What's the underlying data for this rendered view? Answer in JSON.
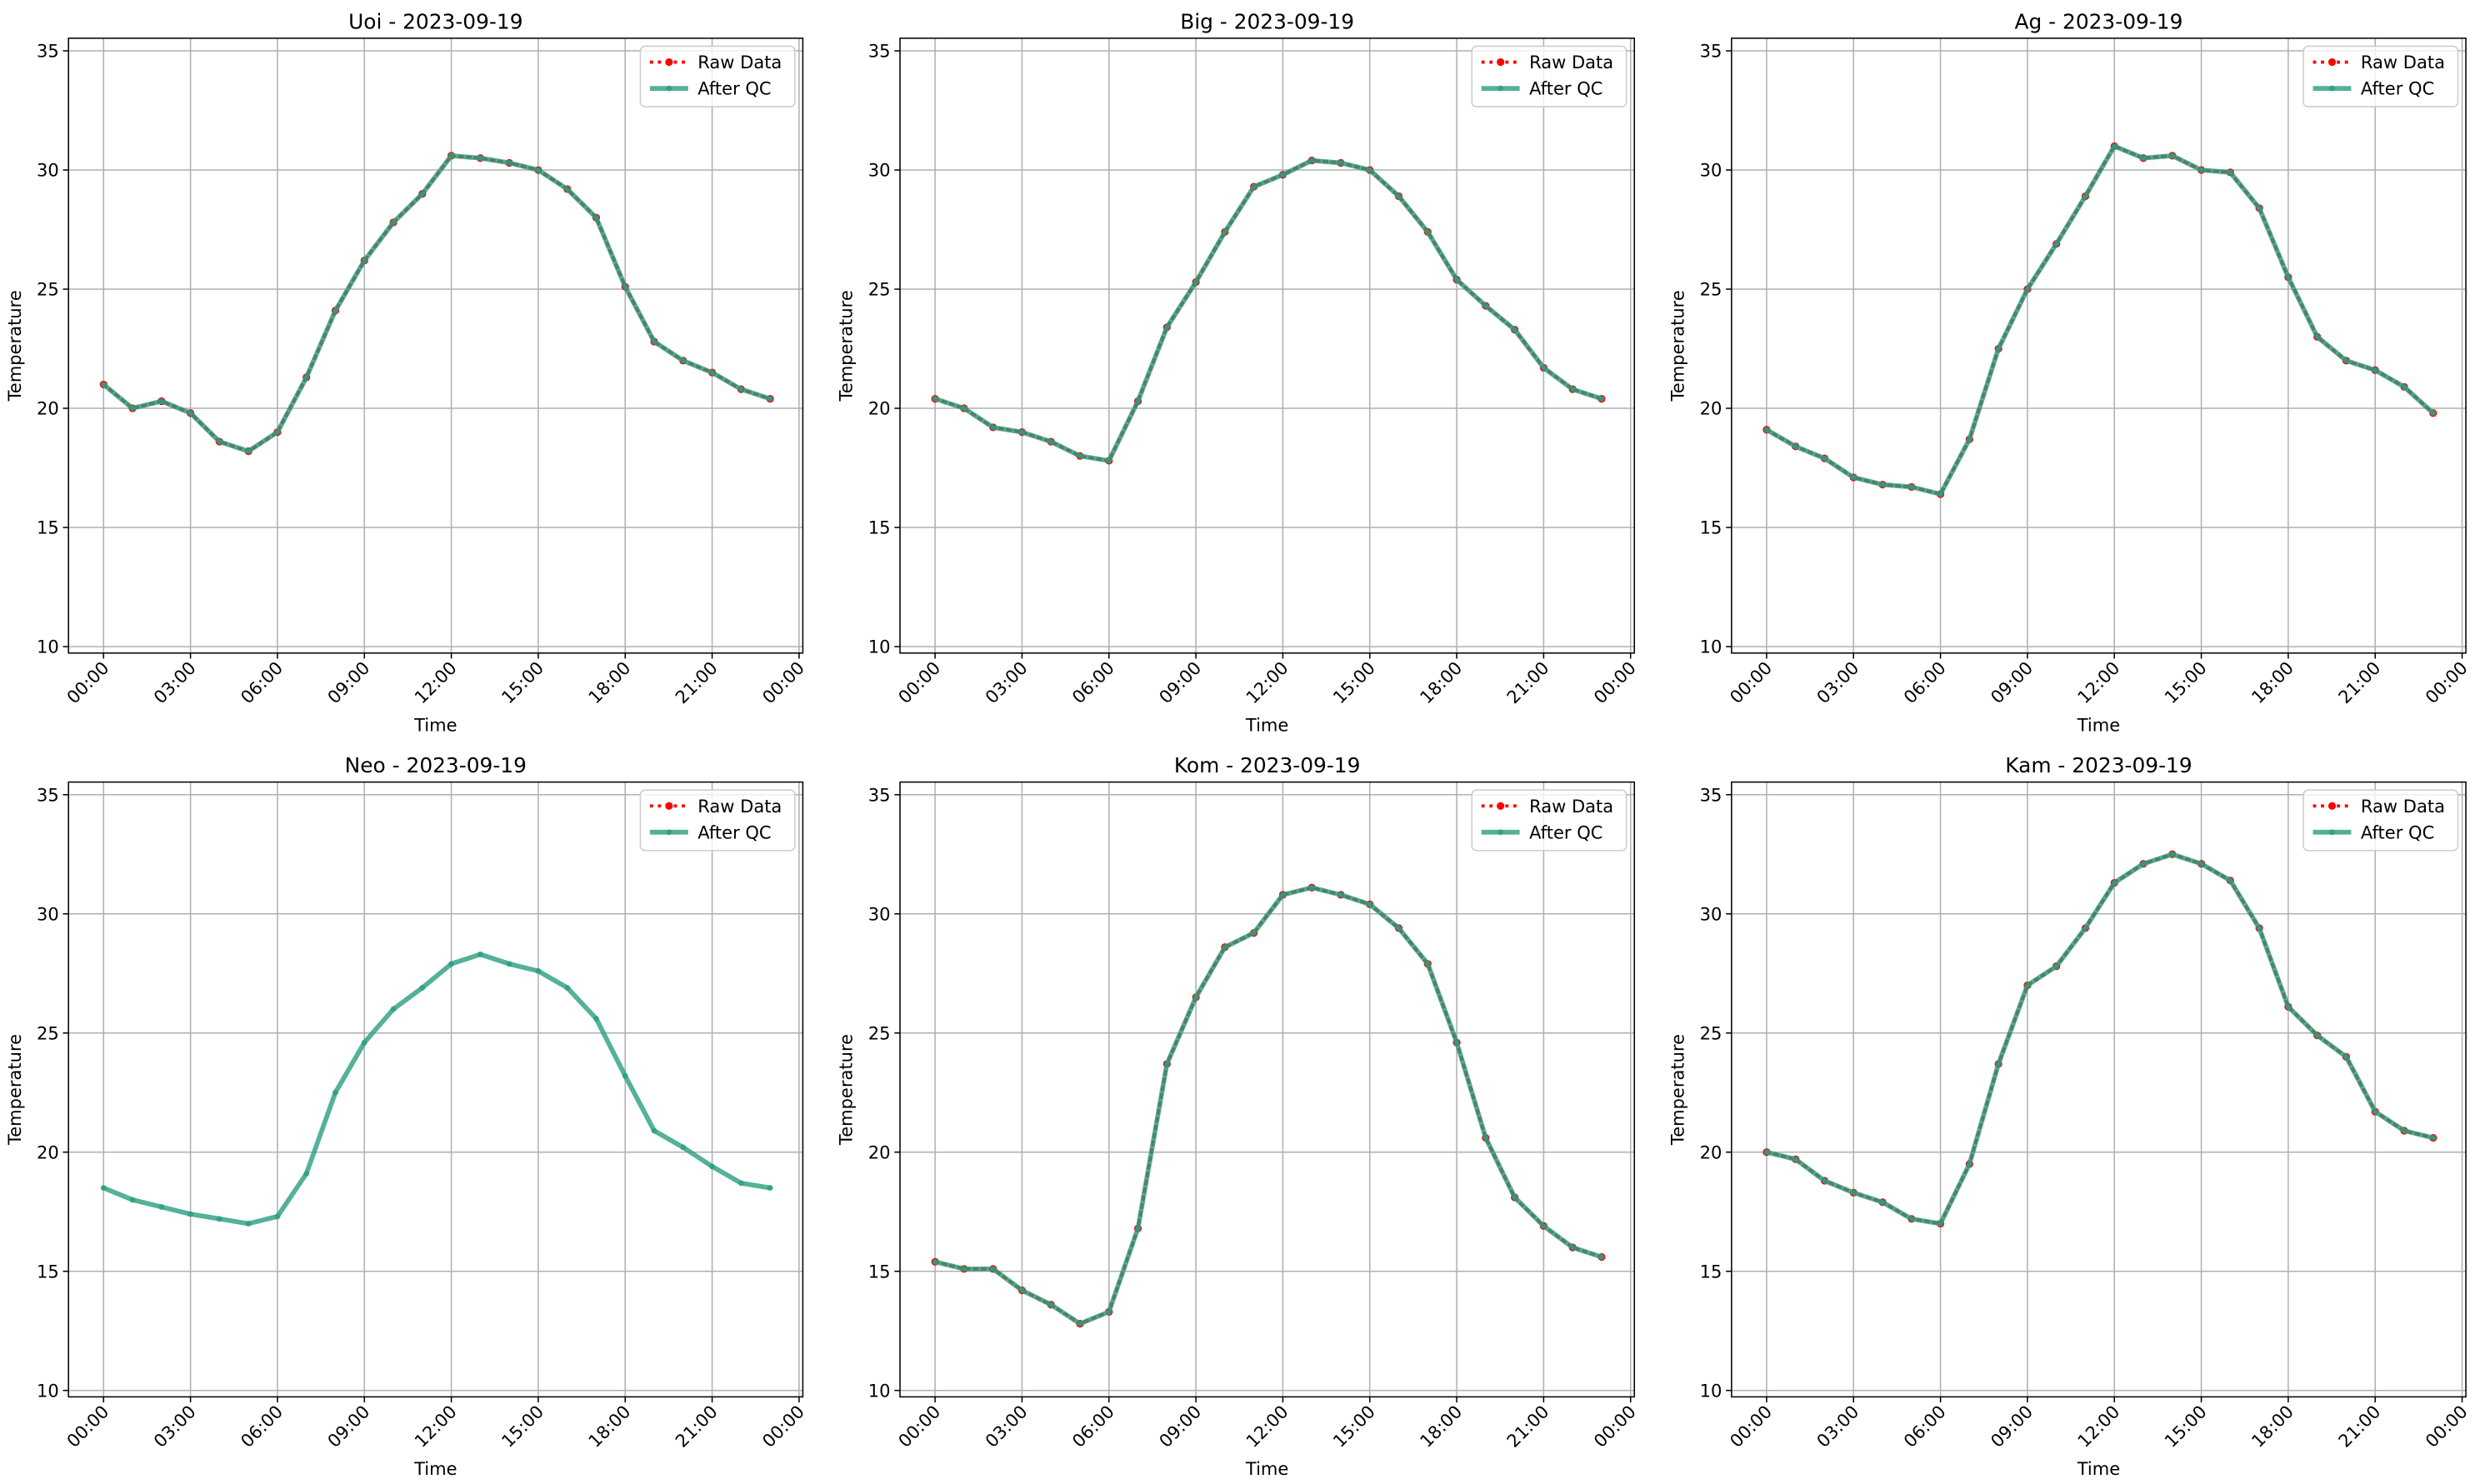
{
  "chart_data": [
    {
      "type": "line",
      "title": "Uoi - 2023-09-19",
      "xlabel": "Time",
      "ylabel": "Temperature",
      "grid": true,
      "legend": "upper right",
      "x": [
        0,
        1,
        2,
        3,
        4,
        5,
        6,
        7,
        8,
        9,
        10,
        11,
        12,
        13,
        14,
        15,
        16,
        17,
        18,
        19,
        20,
        21,
        22,
        23
      ],
      "xlim": [
        -1.21,
        24.13
      ],
      "xticks": [
        {
          "value": 0,
          "label": "00:00"
        },
        {
          "value": 3,
          "label": "03:00"
        },
        {
          "value": 6,
          "label": "06:00"
        },
        {
          "value": 9,
          "label": "09:00"
        },
        {
          "value": 12,
          "label": "12:00"
        },
        {
          "value": 15,
          "label": "15:00"
        },
        {
          "value": 18,
          "label": "18:00"
        },
        {
          "value": 21,
          "label": "21:00"
        },
        {
          "value": 24,
          "label": "00:00"
        }
      ],
      "ylim": [
        9.73,
        35.53
      ],
      "yticks": [
        10,
        15,
        20,
        25,
        30,
        35
      ],
      "series": [
        {
          "name": "Raw Data",
          "color": "#ff0000",
          "values": [
            21.0,
            20.0,
            20.3,
            19.8,
            18.6,
            18.2,
            19.0,
            21.3,
            24.1,
            26.2,
            27.8,
            29.0,
            30.6,
            30.5,
            30.3,
            30.0,
            29.2,
            28.0,
            25.1,
            22.8,
            22.0,
            21.5,
            20.8,
            20.4
          ]
        },
        {
          "name": "After QC",
          "color": "#2a9d7f",
          "values": [
            21.0,
            20.0,
            20.3,
            19.8,
            18.6,
            18.2,
            19.0,
            21.3,
            24.1,
            26.2,
            27.8,
            29.0,
            30.6,
            30.5,
            30.3,
            30.0,
            29.2,
            28.0,
            25.1,
            22.8,
            22.0,
            21.5,
            20.8,
            20.4
          ]
        }
      ]
    },
    {
      "type": "line",
      "title": "Big - 2023-09-19",
      "xlabel": "Time",
      "ylabel": "Temperature",
      "grid": true,
      "legend": "upper right",
      "x": [
        0,
        1,
        2,
        3,
        4,
        5,
        6,
        7,
        8,
        9,
        10,
        11,
        12,
        13,
        14,
        15,
        16,
        17,
        18,
        19,
        20,
        21,
        22,
        23
      ],
      "xlim": [
        -1.21,
        24.13
      ],
      "xticks": [
        {
          "value": 0,
          "label": "00:00"
        },
        {
          "value": 3,
          "label": "03:00"
        },
        {
          "value": 6,
          "label": "06:00"
        },
        {
          "value": 9,
          "label": "09:00"
        },
        {
          "value": 12,
          "label": "12:00"
        },
        {
          "value": 15,
          "label": "15:00"
        },
        {
          "value": 18,
          "label": "18:00"
        },
        {
          "value": 21,
          "label": "21:00"
        },
        {
          "value": 24,
          "label": "00:00"
        }
      ],
      "ylim": [
        9.73,
        35.53
      ],
      "yticks": [
        10,
        15,
        20,
        25,
        30,
        35
      ],
      "series": [
        {
          "name": "Raw Data",
          "color": "#ff0000",
          "values": [
            20.4,
            20.0,
            19.2,
            19.0,
            18.6,
            18.0,
            17.8,
            20.3,
            23.4,
            25.3,
            27.4,
            29.3,
            29.8,
            30.4,
            30.3,
            30.0,
            28.9,
            27.4,
            25.4,
            24.3,
            23.3,
            21.7,
            20.8,
            20.4
          ]
        },
        {
          "name": "After QC",
          "color": "#2a9d7f",
          "values": [
            20.4,
            20.0,
            19.2,
            19.0,
            18.6,
            18.0,
            17.8,
            20.3,
            23.4,
            25.3,
            27.4,
            29.3,
            29.8,
            30.4,
            30.3,
            30.0,
            28.9,
            27.4,
            25.4,
            24.3,
            23.3,
            21.7,
            20.8,
            20.4
          ]
        }
      ]
    },
    {
      "type": "line",
      "title": "Ag - 2023-09-19",
      "xlabel": "Time",
      "ylabel": "Temperature",
      "grid": true,
      "legend": "upper right",
      "x": [
        0,
        1,
        2,
        3,
        4,
        5,
        6,
        7,
        8,
        9,
        10,
        11,
        12,
        13,
        14,
        15,
        16,
        17,
        18,
        19,
        20,
        21,
        22,
        23
      ],
      "xlim": [
        -1.21,
        24.13
      ],
      "xticks": [
        {
          "value": 0,
          "label": "00:00"
        },
        {
          "value": 3,
          "label": "03:00"
        },
        {
          "value": 6,
          "label": "06:00"
        },
        {
          "value": 9,
          "label": "09:00"
        },
        {
          "value": 12,
          "label": "12:00"
        },
        {
          "value": 15,
          "label": "15:00"
        },
        {
          "value": 18,
          "label": "18:00"
        },
        {
          "value": 21,
          "label": "21:00"
        },
        {
          "value": 24,
          "label": "00:00"
        }
      ],
      "ylim": [
        9.73,
        35.53
      ],
      "yticks": [
        10,
        15,
        20,
        25,
        30,
        35
      ],
      "series": [
        {
          "name": "Raw Data",
          "color": "#ff0000",
          "values": [
            19.1,
            18.4,
            17.9,
            17.1,
            16.8,
            16.7,
            16.4,
            18.7,
            22.5,
            25.0,
            26.9,
            28.9,
            31.0,
            30.5,
            30.6,
            30.0,
            29.9,
            28.4,
            25.5,
            23.0,
            22.0,
            21.6,
            20.9,
            19.8
          ]
        },
        {
          "name": "After QC",
          "color": "#2a9d7f",
          "values": [
            19.1,
            18.4,
            17.9,
            17.1,
            16.8,
            16.7,
            16.4,
            18.7,
            22.5,
            25.0,
            26.9,
            28.9,
            31.0,
            30.5,
            30.6,
            30.0,
            29.9,
            28.4,
            25.5,
            23.0,
            22.0,
            21.6,
            20.9,
            19.8
          ]
        }
      ]
    },
    {
      "type": "line",
      "title": "Neo - 2023-09-19",
      "xlabel": "Time",
      "ylabel": "Temperature",
      "grid": true,
      "legend": "upper right",
      "x": [
        0,
        1,
        2,
        3,
        4,
        5,
        6,
        7,
        8,
        9,
        10,
        11,
        12,
        13,
        14,
        15,
        16,
        17,
        18,
        19,
        20,
        21,
        22,
        23
      ],
      "xlim": [
        -1.21,
        24.13
      ],
      "xticks": [
        {
          "value": 0,
          "label": "00:00"
        },
        {
          "value": 3,
          "label": "03:00"
        },
        {
          "value": 6,
          "label": "06:00"
        },
        {
          "value": 9,
          "label": "09:00"
        },
        {
          "value": 12,
          "label": "12:00"
        },
        {
          "value": 15,
          "label": "15:00"
        },
        {
          "value": 18,
          "label": "18:00"
        },
        {
          "value": 21,
          "label": "21:00"
        },
        {
          "value": 24,
          "label": "00:00"
        }
      ],
      "ylim": [
        9.73,
        35.53
      ],
      "yticks": [
        10,
        15,
        20,
        25,
        30,
        35
      ],
      "series": [
        {
          "name": "Raw Data",
          "color": "#ff0000",
          "values": [
            null,
            null,
            null,
            null,
            null,
            null,
            null,
            null,
            null,
            null,
            null,
            null,
            null,
            null,
            null,
            null,
            null,
            null,
            null,
            null,
            null,
            null,
            null,
            null
          ]
        },
        {
          "name": "After QC",
          "color": "#2a9d7f",
          "values": [
            18.5,
            18.0,
            17.7,
            17.4,
            17.2,
            17.0,
            17.3,
            19.1,
            22.5,
            24.6,
            26.0,
            26.9,
            27.9,
            28.3,
            27.9,
            27.6,
            26.9,
            25.6,
            23.2,
            20.9,
            20.2,
            19.4,
            18.7,
            18.5
          ]
        }
      ]
    },
    {
      "type": "line",
      "title": "Kom - 2023-09-19",
      "xlabel": "Time",
      "ylabel": "Temperature",
      "grid": true,
      "legend": "upper right",
      "x": [
        0,
        1,
        2,
        3,
        4,
        5,
        6,
        7,
        8,
        9,
        10,
        11,
        12,
        13,
        14,
        15,
        16,
        17,
        18,
        19,
        20,
        21,
        22,
        23
      ],
      "xlim": [
        -1.21,
        24.13
      ],
      "xticks": [
        {
          "value": 0,
          "label": "00:00"
        },
        {
          "value": 3,
          "label": "03:00"
        },
        {
          "value": 6,
          "label": "06:00"
        },
        {
          "value": 9,
          "label": "09:00"
        },
        {
          "value": 12,
          "label": "12:00"
        },
        {
          "value": 15,
          "label": "15:00"
        },
        {
          "value": 18,
          "label": "18:00"
        },
        {
          "value": 21,
          "label": "21:00"
        },
        {
          "value": 24,
          "label": "00:00"
        }
      ],
      "ylim": [
        9.73,
        35.53
      ],
      "yticks": [
        10,
        15,
        20,
        25,
        30,
        35
      ],
      "series": [
        {
          "name": "Raw Data",
          "color": "#ff0000",
          "values": [
            15.4,
            15.1,
            15.1,
            14.2,
            13.6,
            12.8,
            13.3,
            16.8,
            23.7,
            26.5,
            28.6,
            29.2,
            30.8,
            31.1,
            30.8,
            30.4,
            29.4,
            27.9,
            24.6,
            20.6,
            18.1,
            16.9,
            16.0,
            15.6
          ]
        },
        {
          "name": "After QC",
          "color": "#2a9d7f",
          "values": [
            15.4,
            15.1,
            15.1,
            14.2,
            13.6,
            12.8,
            13.3,
            16.8,
            23.7,
            26.5,
            28.6,
            29.2,
            30.8,
            31.1,
            30.8,
            30.4,
            29.4,
            27.9,
            24.6,
            20.6,
            18.1,
            16.9,
            16.0,
            15.6
          ]
        }
      ]
    },
    {
      "type": "line",
      "title": "Kam - 2023-09-19",
      "xlabel": "Time",
      "ylabel": "Temperature",
      "grid": true,
      "legend": "upper right",
      "x": [
        0,
        1,
        2,
        3,
        4,
        5,
        6,
        7,
        8,
        9,
        10,
        11,
        12,
        13,
        14,
        15,
        16,
        17,
        18,
        19,
        20,
        21,
        22,
        23
      ],
      "xlim": [
        -1.21,
        24.13
      ],
      "xticks": [
        {
          "value": 0,
          "label": "00:00"
        },
        {
          "value": 3,
          "label": "03:00"
        },
        {
          "value": 6,
          "label": "06:00"
        },
        {
          "value": 9,
          "label": "09:00"
        },
        {
          "value": 12,
          "label": "12:00"
        },
        {
          "value": 15,
          "label": "15:00"
        },
        {
          "value": 18,
          "label": "18:00"
        },
        {
          "value": 21,
          "label": "21:00"
        },
        {
          "value": 24,
          "label": "00:00"
        }
      ],
      "ylim": [
        9.73,
        35.53
      ],
      "yticks": [
        10,
        15,
        20,
        25,
        30,
        35
      ],
      "series": [
        {
          "name": "Raw Data",
          "color": "#ff0000",
          "values": [
            20.0,
            19.7,
            18.8,
            18.3,
            17.9,
            17.2,
            17.0,
            19.5,
            23.7,
            27.0,
            27.8,
            29.4,
            31.3,
            32.1,
            32.5,
            32.1,
            31.4,
            29.4,
            26.1,
            24.9,
            24.0,
            21.7,
            20.9,
            20.6
          ]
        },
        {
          "name": "After QC",
          "color": "#2a9d7f",
          "values": [
            20.0,
            19.7,
            18.8,
            18.3,
            17.9,
            17.2,
            17.0,
            19.5,
            23.7,
            27.0,
            27.8,
            29.4,
            31.3,
            32.1,
            32.5,
            32.1,
            31.4,
            29.4,
            26.1,
            24.9,
            24.0,
            21.7,
            20.9,
            20.6
          ]
        }
      ]
    }
  ]
}
